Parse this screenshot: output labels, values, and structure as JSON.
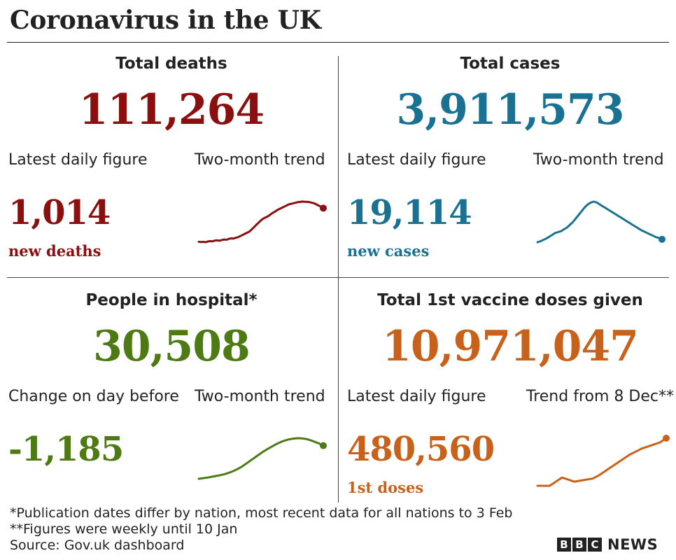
{
  "title": "Coronavirus in the UK",
  "panels": {
    "deaths": {
      "heading": "Total deaths",
      "total": "111,264",
      "left_label": "Latest daily figure",
      "right_label": "Two-month trend",
      "daily_value": "1,014",
      "daily_sub": "new deaths",
      "color": "#8c0f0f"
    },
    "cases": {
      "heading": "Total cases",
      "total": "3,911,573",
      "left_label": "Latest daily figure",
      "right_label": "Two-month trend",
      "daily_value": "19,114",
      "daily_sub": "new cases",
      "color": "#1a7293"
    },
    "hospital": {
      "heading": "People in hospital*",
      "total": "30,508",
      "left_label": "Change on day before",
      "right_label": "Two-month trend",
      "daily_value": "-1,185",
      "color": "#4d7a12"
    },
    "vaccine": {
      "heading": "Total 1st vaccine doses given",
      "total": "10,971,047",
      "left_label": "Latest daily figure",
      "right_label": "Trend from 8 Dec**",
      "daily_value": "480,560",
      "daily_sub": "1st doses",
      "color": "#c8621a"
    }
  },
  "notes": [
    "*Publication dates differ by nation, most recent data for all nations to 3 Feb",
    "**Figures were weekly until 10 Jan",
    "Source: Gov.uk dashboard"
  ],
  "logo": {
    "letters": [
      "B",
      "B",
      "C"
    ],
    "word": "NEWS"
  },
  "chart_data": [
    {
      "type": "line",
      "name": "deaths-trend",
      "color": "#8c0f0f",
      "values": [
        420,
        415,
        418,
        412,
        425,
        430,
        428,
        440,
        445,
        438,
        450,
        460,
        455,
        470,
        480,
        475,
        490,
        500,
        520,
        540,
        560,
        580,
        600,
        640,
        680,
        720,
        760,
        800,
        830,
        850,
        870,
        900,
        930,
        950,
        980,
        1000,
        1020,
        1040,
        1060,
        1080,
        1090,
        1100,
        1110,
        1120,
        1125,
        1130,
        1128,
        1125,
        1120,
        1110,
        1100,
        1080,
        1060,
        1040,
        1014
      ]
    },
    {
      "type": "line",
      "name": "cases-trend",
      "color": "#1a7293",
      "values": [
        16000,
        17000,
        18500,
        20000,
        22000,
        24000,
        26000,
        27000,
        28000,
        30000,
        32000,
        35000,
        38000,
        42000,
        46000,
        50000,
        54000,
        57000,
        59000,
        60000,
        59000,
        57000,
        55000,
        53000,
        51000,
        49000,
        47000,
        45000,
        43000,
        41000,
        39000,
        37000,
        35000,
        33000,
        31000,
        29000,
        27500,
        26000,
        24500,
        23000,
        21500,
        20500,
        19114
      ]
    },
    {
      "type": "line",
      "name": "hospital-trend",
      "color": "#4d7a12",
      "values": [
        14000,
        14300,
        14600,
        15000,
        15400,
        15800,
        16300,
        17000,
        17800,
        18800,
        20000,
        21500,
        23000,
        24500,
        26000,
        27500,
        28800,
        30000,
        31200,
        32200,
        33000,
        33600,
        34000,
        34200,
        34100,
        33800,
        33200,
        32400,
        31600,
        30508
      ]
    },
    {
      "type": "line",
      "name": "vaccine-trend",
      "color": "#c8621a",
      "values": [
        20000,
        20000,
        20000,
        60000,
        100000,
        80000,
        60000,
        70000,
        80000,
        90000,
        120000,
        160000,
        200000,
        240000,
        280000,
        320000,
        350000,
        380000,
        400000,
        420000,
        440000,
        480560
      ]
    }
  ]
}
